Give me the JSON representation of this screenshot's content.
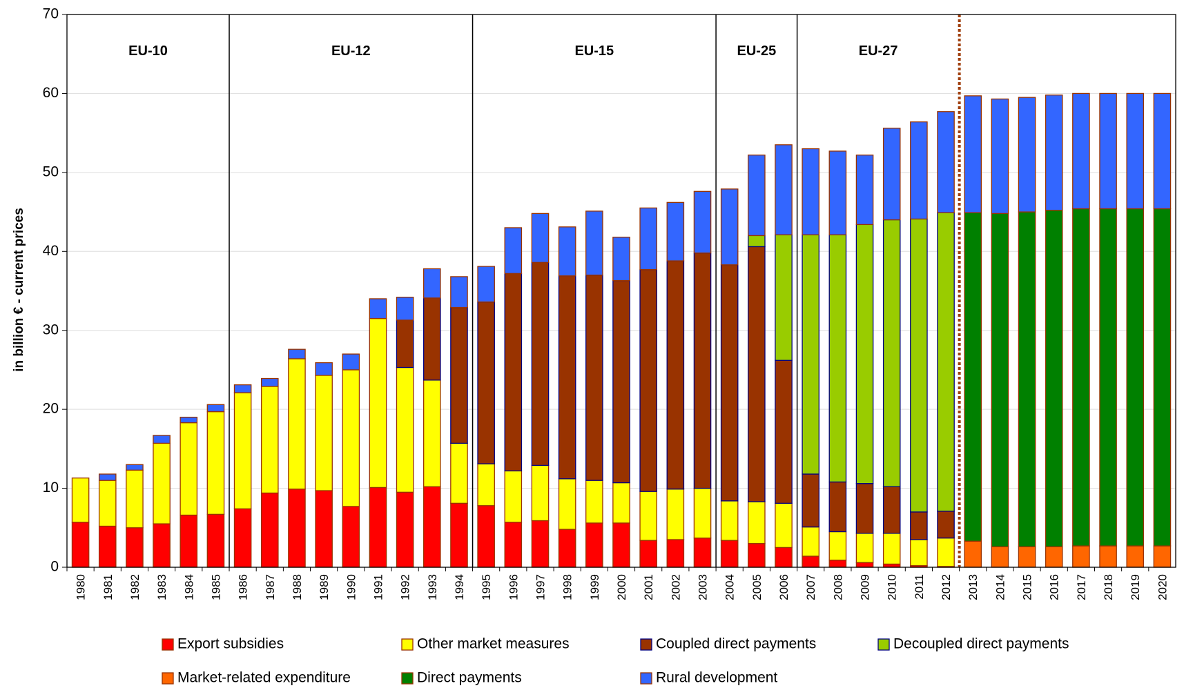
{
  "chart_data": {
    "type": "stacked-bar",
    "ylabel": "in billion € - current prices",
    "ylim": [
      0,
      70
    ],
    "yticks": [
      0,
      10,
      20,
      30,
      40,
      50,
      60,
      70
    ],
    "grid": true,
    "categories": [
      "1980",
      "1981",
      "1982",
      "1983",
      "1984",
      "1985",
      "1986",
      "1987",
      "1988",
      "1989",
      "1990",
      "1991",
      "1992",
      "1993",
      "1994",
      "1995",
      "1996",
      "1997",
      "1998",
      "1999",
      "2000",
      "2001",
      "2002",
      "2003",
      "2004",
      "2005",
      "2006",
      "2007",
      "2008",
      "2009",
      "2010",
      "2011",
      "2012",
      "2013",
      "2014",
      "2015",
      "2016",
      "2017",
      "2018",
      "2019",
      "2020"
    ],
    "periods": [
      {
        "label": "EU-10",
        "from": "1980"
      },
      {
        "label": "EU-12",
        "from": "1986"
      },
      {
        "label": "EU-15",
        "from": "1995"
      },
      {
        "label": "EU-25",
        "from": "2004"
      },
      {
        "label": "EU-27",
        "from": "2007"
      }
    ],
    "series": [
      {
        "name": "Export subsidies",
        "color": "#ff0000",
        "edgecolor": "#993300",
        "values": [
          5.7,
          5.2,
          5.0,
          5.5,
          6.6,
          6.7,
          7.4,
          9.4,
          9.9,
          9.7,
          7.7,
          10.1,
          9.5,
          10.2,
          8.1,
          7.8,
          5.7,
          5.9,
          4.8,
          5.6,
          5.6,
          3.4,
          3.5,
          3.7,
          3.4,
          3.0,
          2.5,
          1.4,
          0.9,
          0.6,
          0.4,
          0.2,
          0.1,
          null,
          null,
          null,
          null,
          null,
          null,
          null,
          null
        ]
      },
      {
        "name": "Other market measures",
        "color": "#ffff00",
        "edgecolor": "#993300",
        "values": [
          5.6,
          5.8,
          7.3,
          10.2,
          11.7,
          13.0,
          14.7,
          13.5,
          16.5,
          14.6,
          17.3,
          21.4,
          15.8,
          13.5,
          7.6,
          5.3,
          6.5,
          7.0,
          6.4,
          5.4,
          5.1,
          6.2,
          6.4,
          6.3,
          5.0,
          5.3,
          5.6,
          3.7,
          3.6,
          3.7,
          3.9,
          3.3,
          3.6,
          null,
          null,
          null,
          null,
          null,
          null,
          null,
          null
        ]
      },
      {
        "name": "Coupled direct payments",
        "color": "#993300",
        "edgecolor": "#000080",
        "values": [
          null,
          null,
          null,
          null,
          null,
          null,
          null,
          null,
          null,
          null,
          null,
          null,
          6.0,
          10.4,
          17.2,
          20.5,
          25.0,
          25.7,
          25.7,
          26.0,
          25.6,
          28.1,
          28.9,
          29.8,
          29.9,
          32.3,
          18.1,
          6.7,
          6.3,
          6.3,
          5.9,
          3.5,
          3.4,
          null,
          null,
          null,
          null,
          null,
          null,
          null,
          null
        ]
      },
      {
        "name": "Decoupled direct payments",
        "color": "#99cc00",
        "edgecolor": "#000080",
        "values": [
          null,
          null,
          null,
          null,
          null,
          null,
          null,
          null,
          null,
          null,
          null,
          null,
          null,
          null,
          null,
          null,
          null,
          null,
          null,
          null,
          null,
          null,
          null,
          null,
          null,
          1.4,
          15.9,
          30.3,
          31.3,
          32.8,
          33.8,
          37.1,
          37.8,
          null,
          null,
          null,
          null,
          null,
          null,
          null,
          null
        ]
      },
      {
        "name": "Market-related expenditure",
        "color": "#ff6600",
        "edgecolor": "#993300",
        "values": [
          null,
          null,
          null,
          null,
          null,
          null,
          null,
          null,
          null,
          null,
          null,
          null,
          null,
          null,
          null,
          null,
          null,
          null,
          null,
          null,
          null,
          null,
          null,
          null,
          null,
          null,
          null,
          null,
          null,
          null,
          null,
          null,
          null,
          3.3,
          2.6,
          2.6,
          2.6,
          2.7,
          2.7,
          2.7,
          2.7
        ]
      },
      {
        "name": "Direct payments",
        "color": "#008000",
        "edgecolor": "#993300",
        "values": [
          null,
          null,
          null,
          null,
          null,
          null,
          null,
          null,
          null,
          null,
          null,
          null,
          null,
          null,
          null,
          null,
          null,
          null,
          null,
          null,
          null,
          null,
          null,
          null,
          null,
          null,
          null,
          null,
          null,
          null,
          null,
          null,
          null,
          41.6,
          42.2,
          42.4,
          42.6,
          42.7,
          42.7,
          42.7,
          42.7
        ]
      },
      {
        "name": "Rural development",
        "color": "#3366ff",
        "edgecolor": "#993300",
        "values": [
          null,
          0.8,
          0.7,
          1.0,
          0.7,
          0.9,
          1.0,
          1.0,
          1.2,
          1.6,
          2.0,
          2.5,
          2.9,
          3.7,
          3.9,
          4.5,
          5.8,
          6.2,
          6.2,
          8.1,
          5.5,
          7.8,
          7.4,
          7.8,
          9.6,
          10.2,
          11.4,
          10.9,
          10.6,
          8.8,
          11.6,
          12.3,
          12.8,
          14.8,
          14.5,
          14.5,
          14.6,
          14.6,
          14.6,
          14.6,
          14.6
        ]
      }
    ]
  }
}
